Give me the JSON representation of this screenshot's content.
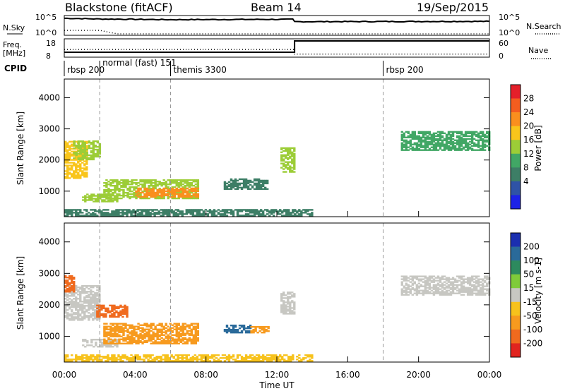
{
  "header": {
    "station": "Blackstone (fitACF)",
    "beam": "Beam 14",
    "date": "19/Sep/2015"
  },
  "top_panels": {
    "nsky_label": "N.Sky",
    "nsearch_label": "N.Search",
    "count_ticks": [
      "10^5",
      "10^0"
    ],
    "freq_label": "Freq.",
    "freq_unit": "[MHz]",
    "freq_ticks": [
      "18",
      "8"
    ],
    "nave_label": "Nave",
    "nave_ticks": [
      "60",
      "0"
    ],
    "freq_series": [
      {
        "t": 0,
        "v": 10
      },
      {
        "t": 13,
        "v": 10
      },
      {
        "t": 13,
        "v": 18
      },
      {
        "t": 24,
        "v": 18
      }
    ],
    "nave_series": [
      {
        "t": 0,
        "v": 25
      },
      {
        "t": 13,
        "v": 25
      },
      {
        "t": 13,
        "v": 10
      },
      {
        "t": 24,
        "v": 10
      }
    ],
    "nsky_series": [
      {
        "t": 0,
        "v": 4.6
      },
      {
        "t": 2,
        "v": 4.4
      },
      {
        "t": 6,
        "v": 4.2
      },
      {
        "t": 12.9,
        "v": 4.3
      },
      {
        "t": 13,
        "v": 3.6
      },
      {
        "t": 24,
        "v": 3.7
      }
    ]
  },
  "cpid": {
    "label": "CPID",
    "segments": [
      {
        "name": "rbsp 200",
        "start": 0
      },
      {
        "name": "normal (fast) 151",
        "start": 2
      },
      {
        "name": "themis 3300",
        "start": 6
      },
      {
        "name": "rbsp 200",
        "start": 18
      }
    ]
  },
  "power_colorbar": {
    "label": "Power [dB]",
    "ticks": [
      "28",
      "24",
      "20",
      "16",
      "12",
      "8",
      "4"
    ],
    "colors": [
      "#e4202a",
      "#f45d1f",
      "#fa8f1e",
      "#f9c51b",
      "#9ccd37",
      "#41a765",
      "#3d7e66",
      "#2f53a6",
      "#1d22e8"
    ]
  },
  "velocity_colorbar": {
    "label": "Velocity [m s-1]",
    "ticks": [
      "200",
      "100",
      "50",
      "15",
      "-15",
      "-50",
      "-100",
      "-200"
    ],
    "colors": [
      "#1b2fb0",
      "#2a6a9a",
      "#2d8a5e",
      "#7fcb3a",
      "#c7c7c2",
      "#f7c21c",
      "#f79a1e",
      "#f06a1e",
      "#e1241f"
    ]
  },
  "chart_data": {
    "type": "heatmap",
    "xlabel": "Time UT",
    "ylabel": "Slant Range [km]",
    "x_ticks": [
      "00:00",
      "04:00",
      "08:00",
      "12:00",
      "16:00",
      "20:00",
      "00:00"
    ],
    "y_ticks": [
      "1000",
      "2000",
      "3000",
      "4000"
    ],
    "xlim_hours": [
      0,
      24
    ],
    "ylim_km": [
      180,
      4600
    ],
    "power_regions": [
      {
        "t0": 0.0,
        "t1": 1.3,
        "r0": 1400,
        "r1": 2600,
        "power": 22
      },
      {
        "t0": 0.5,
        "t1": 2.0,
        "r0": 2000,
        "r1": 2600,
        "power": 16
      },
      {
        "t0": 1.0,
        "t1": 3.0,
        "r0": 650,
        "r1": 900,
        "power": 18
      },
      {
        "t0": 2.2,
        "t1": 7.5,
        "r0": 750,
        "r1": 1350,
        "power": 16
      },
      {
        "t0": 4.0,
        "t1": 7.5,
        "r0": 800,
        "r1": 1100,
        "power": 24
      },
      {
        "t0": 9.0,
        "t1": 11.5,
        "r0": 1050,
        "r1": 1400,
        "power": 8
      },
      {
        "t0": 12.2,
        "t1": 13.0,
        "r0": 1600,
        "r1": 2400,
        "power": 16
      },
      {
        "t0": 19.0,
        "t1": 24.0,
        "r0": 2300,
        "r1": 2900,
        "power": 12
      },
      {
        "t0": 0.0,
        "t1": 14.0,
        "r0": 200,
        "r1": 420,
        "power": 10
      }
    ],
    "velocity_regions": [
      {
        "t0": 0.0,
        "t1": 2.0,
        "r0": 1500,
        "r1": 2600,
        "velocity": 0
      },
      {
        "t0": 0.0,
        "t1": 0.5,
        "r0": 2400,
        "r1": 2900,
        "velocity": -150
      },
      {
        "t0": 1.8,
        "t1": 3.5,
        "r0": 1600,
        "r1": 2000,
        "velocity": -120
      },
      {
        "t0": 1.0,
        "t1": 3.0,
        "r0": 650,
        "r1": 900,
        "velocity": 0
      },
      {
        "t0": 2.2,
        "t1": 7.5,
        "r0": 750,
        "r1": 1400,
        "velocity": -60
      },
      {
        "t0": 9.0,
        "t1": 10.5,
        "r0": 1100,
        "r1": 1350,
        "velocity": 120
      },
      {
        "t0": 10.5,
        "t1": 11.5,
        "r0": 1100,
        "r1": 1300,
        "velocity": -60
      },
      {
        "t0": 12.2,
        "t1": 13.0,
        "r0": 1700,
        "r1": 2400,
        "velocity": 0
      },
      {
        "t0": 19.0,
        "t1": 24.0,
        "r0": 2300,
        "r1": 2900,
        "velocity": 0
      },
      {
        "t0": 0.0,
        "t1": 14.0,
        "r0": 200,
        "r1": 420,
        "velocity": -30
      }
    ]
  }
}
